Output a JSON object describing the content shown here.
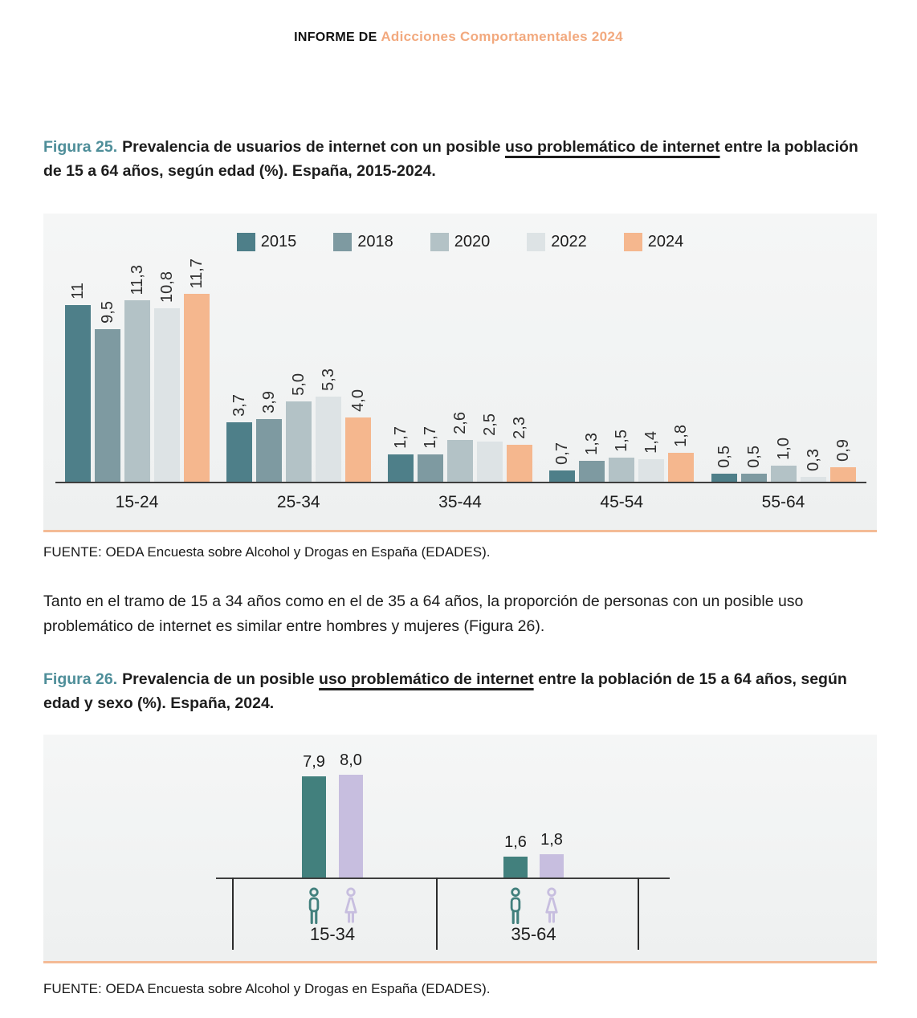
{
  "header": {
    "prefix": "INFORME DE ",
    "title": "Adicciones Comportamentales 2024"
  },
  "figura25": {
    "label": "Figura 25.",
    "caption_before": "Prevalencia de usuarios de internet con un posible ",
    "caption_underlined": "uso problemático de internet",
    "caption_after": " entre la población de 15 a 64 años, según edad (%). España, 2015-2024.",
    "fuente": "FUENTE: OEDA Encuesta sobre Alcohol y Drogas en España (EDADES)."
  },
  "paragraph": "Tanto en el tramo de 15 a 34 años como en el de 35 a 64 años, la proporción de personas con un posible uso problemático de internet es similar entre hombres y mujeres (Figura 26).",
  "figura26": {
    "label": "Figura 26.",
    "caption_before": "Prevalencia de un posible ",
    "caption_underlined": "uso problemático de internet",
    "caption_after": " entre la población de 15 a 64 años, según edad y sexo (%). España, 2024.",
    "fuente": "FUENTE: OEDA Encuesta sobre Alcohol y Drogas en España (EDADES)."
  },
  "colors": {
    "accent_orange": "#f2a97e",
    "divider_orange": "#f4bb96",
    "heading_teal": "#4e8e99",
    "axis": "#3e3e3e",
    "panel_bg": "#f3f4f4"
  },
  "chart_data": [
    {
      "id": "figura25",
      "type": "bar",
      "title": "Prevalencia de usuarios de internet con un posible uso problemático de internet entre la población de 15 a 64 años, según edad (%). España, 2015-2024",
      "ylabel": "%",
      "ylim": [
        0,
        12
      ],
      "grid": false,
      "legend_position": "top",
      "categories": [
        "15-24",
        "25-34",
        "35-44",
        "45-54",
        "55-64"
      ],
      "series": [
        {
          "name": "2015",
          "color": "#4e7f89",
          "values": [
            11,
            3.7,
            1.7,
            0.7,
            0.5
          ],
          "display": [
            "11",
            "3,7",
            "1,7",
            "0,7",
            "0,5"
          ]
        },
        {
          "name": "2018",
          "color": "#7e9aa1",
          "values": [
            9.5,
            3.9,
            1.7,
            1.3,
            0.5
          ],
          "display": [
            "9,5",
            "3,9",
            "1,7",
            "1,3",
            "0,5"
          ]
        },
        {
          "name": "2020",
          "color": "#b3c2c6",
          "values": [
            11.3,
            5.0,
            2.6,
            1.5,
            1.0
          ],
          "display": [
            "11,3",
            "5,0",
            "2,6",
            "1,5",
            "1,0"
          ]
        },
        {
          "name": "2022",
          "color": "#dde3e5",
          "values": [
            10.8,
            5.3,
            2.5,
            1.4,
            0.3
          ],
          "display": [
            "10,8",
            "5,3",
            "2,5",
            "1,4",
            "0,3"
          ]
        },
        {
          "name": "2024",
          "color": "#f5b78e",
          "values": [
            11.7,
            4.0,
            2.3,
            1.8,
            0.9
          ],
          "display": [
            "11,7",
            "4,0",
            "2,3",
            "1,8",
            "0,9"
          ]
        }
      ]
    },
    {
      "id": "figura26",
      "type": "bar",
      "title": "Prevalencia de un posible uso problemático de internet entre la población de 15 a 64 años, según edad y sexo (%). España, 2024",
      "ylabel": "%",
      "ylim": [
        0,
        9
      ],
      "grid": false,
      "legend_position": "none",
      "categories": [
        "15-34",
        "35-64"
      ],
      "series": [
        {
          "name": "Hombres",
          "color": "#42807d",
          "icon": "male-icon",
          "values": [
            7.9,
            1.6
          ],
          "display": [
            "7,9",
            "1,6"
          ]
        },
        {
          "name": "Mujeres",
          "color": "#c7bedf",
          "icon": "female-icon",
          "values": [
            8.0,
            1.8
          ],
          "display": [
            "8,0",
            "1,8"
          ]
        }
      ]
    }
  ]
}
